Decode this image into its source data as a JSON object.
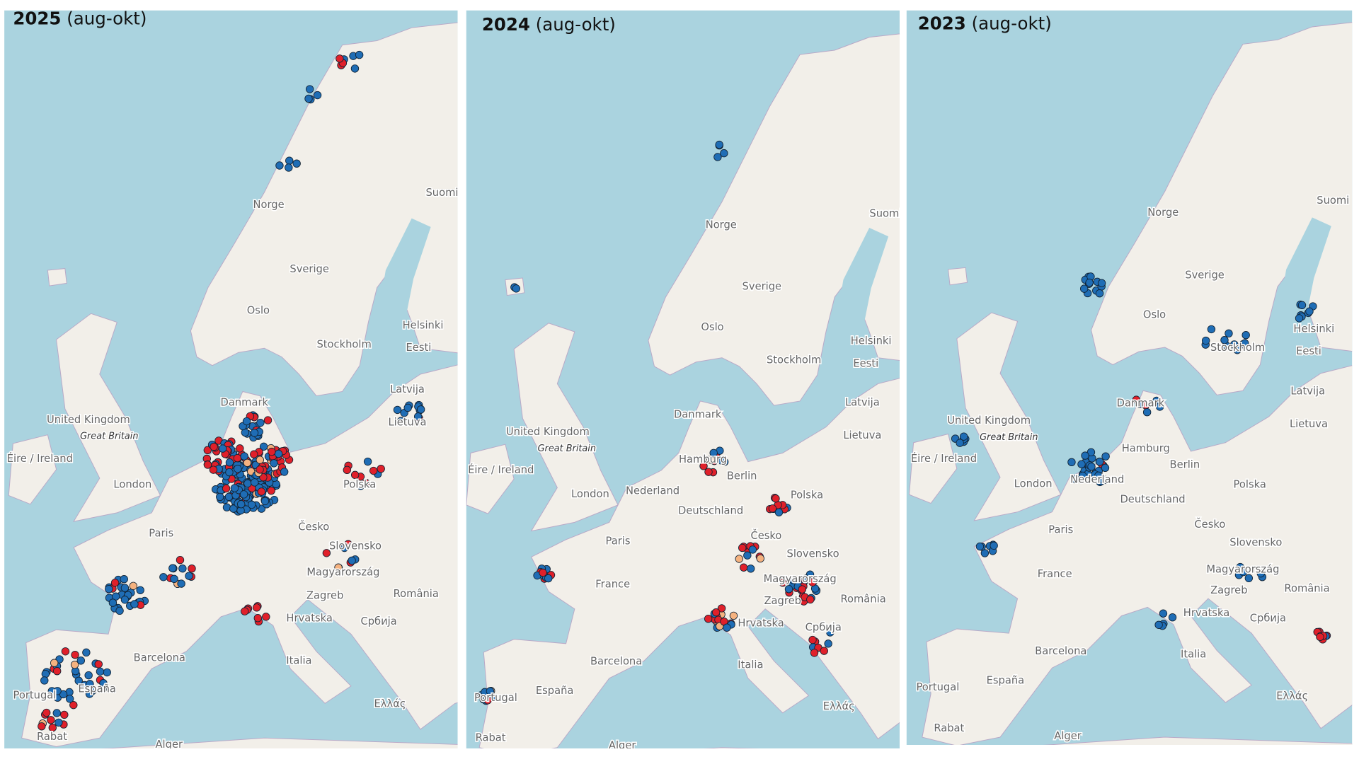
{
  "panels": [
    {
      "year": "2025",
      "period": "(aug-okt)",
      "labels": [
        "Norge",
        "Sverige",
        "Oslo",
        "Stockholm",
        "Helsinki",
        "Eesti",
        "Suomi",
        "Latvija",
        "Lietuva",
        "Danmark",
        "United Kingdom",
        "Great Britain",
        "Éire / Ireland",
        "London",
        "Paris",
        "Polska",
        "Česko",
        "Slovensko",
        "Magyarország",
        "Zagreb",
        "România",
        "Hrvatska",
        "Србија",
        "Italia",
        "Barcelona",
        "España",
        "Portugal",
        "Ελλάς",
        "Rabat",
        "Alger"
      ]
    },
    {
      "year": "2024",
      "period": "(aug-okt)",
      "labels": [
        "Norge",
        "Sverige",
        "Oslo",
        "Stockholm",
        "Helsinki",
        "Eesti",
        "Suomi",
        "Latvija",
        "Lietuva",
        "Danmark",
        "Hamburg",
        "Berlin",
        "Nederland",
        "Deutschland",
        "United Kingdom",
        "Great Britain",
        "Éire / Ireland",
        "London",
        "Paris",
        "France",
        "Polska",
        "Česko",
        "Slovensko",
        "Magyarország",
        "Zagreb",
        "România",
        "Hrvatska",
        "Србија",
        "Italia",
        "Barcelona",
        "España",
        "Portugal",
        "Ελλάς",
        "Rabat",
        "Alger"
      ]
    },
    {
      "year": "2023",
      "period": "(aug-okt)",
      "labels": [
        "Norge",
        "Sverige",
        "Oslo",
        "Stockholm",
        "Helsinki",
        "Eesti",
        "Suomi",
        "Latvija",
        "Lietuva",
        "Danmark",
        "Hamburg",
        "Berlin",
        "Nederland",
        "Deutschland",
        "United Kingdom",
        "Great Britain",
        "Éire / Ireland",
        "London",
        "Paris",
        "France",
        "Polska",
        "Česko",
        "Slovensko",
        "Magyarország",
        "Zagreb",
        "România",
        "Hrvatska",
        "Србија",
        "Italia",
        "Barcelona",
        "España",
        "Portugal",
        "Ελλάς",
        "Rabat",
        "Alger"
      ]
    }
  ]
}
